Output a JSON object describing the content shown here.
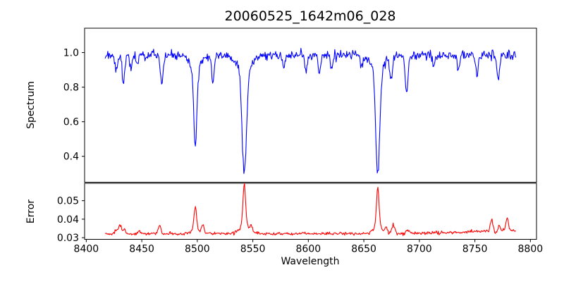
{
  "chart_data": {
    "type": "line",
    "title": "20060525_1642m06_028",
    "xlabel": "Wavelength",
    "legend": null,
    "grid": false,
    "x_data_range": [
      8417,
      8787
    ],
    "xlim": [
      8398.5,
      8805.5
    ],
    "xticks": [
      {
        "v": 8400,
        "label": "8400"
      },
      {
        "v": 8450,
        "label": "8450"
      },
      {
        "v": 8500,
        "label": "8500"
      },
      {
        "v": 8550,
        "label": "8550"
      },
      {
        "v": 8600,
        "label": "8600"
      },
      {
        "v": 8650,
        "label": "8650"
      },
      {
        "v": 8700,
        "label": "8700"
      },
      {
        "v": 8750,
        "label": "8750"
      },
      {
        "v": 8800,
        "label": "8800"
      }
    ],
    "n_points": 620,
    "seed": 20060525,
    "frame_color": "#000000",
    "panels": [
      {
        "name": "spectrum",
        "ylabel": "Spectrum",
        "color": "#0000ff",
        "ylim": [
          0.25,
          1.141
        ],
        "yticks": [
          {
            "v": 0.4,
            "label": "0.4"
          },
          {
            "v": 0.6,
            "label": "0.6"
          },
          {
            "v": 0.8,
            "label": "0.8"
          },
          {
            "v": 1.0,
            "label": "1.0"
          }
        ],
        "baseline": 0.985,
        "noise_sigma": 0.013,
        "absorption_lines": [
          {
            "center": 8427.0,
            "depth": 0.08,
            "sigma": 1.1
          },
          {
            "center": 8433.5,
            "depth": 0.17,
            "sigma": 1.1
          },
          {
            "center": 8440.0,
            "depth": 0.09,
            "sigma": 1.0
          },
          {
            "center": 8446.0,
            "depth": 0.06,
            "sigma": 1.0
          },
          {
            "center": 8468.0,
            "depth": 0.16,
            "sigma": 1.2
          },
          {
            "center": 8498.2,
            "depth": 0.44,
            "sigma": 1.5
          },
          {
            "center": 8498.2,
            "depth": 0.07,
            "sigma": 5.0
          },
          {
            "center": 8514.0,
            "depth": 0.16,
            "sigma": 1.1
          },
          {
            "center": 8542.3,
            "depth": 0.6,
            "sigma": 1.9
          },
          {
            "center": 8542.3,
            "depth": 0.1,
            "sigma": 6.0
          },
          {
            "center": 8578.0,
            "depth": 0.08,
            "sigma": 1.1
          },
          {
            "center": 8598.0,
            "depth": 0.09,
            "sigma": 1.1
          },
          {
            "center": 8610.0,
            "depth": 0.11,
            "sigma": 1.1
          },
          {
            "center": 8621.0,
            "depth": 0.08,
            "sigma": 1.0
          },
          {
            "center": 8648.0,
            "depth": 0.07,
            "sigma": 1.0
          },
          {
            "center": 8662.5,
            "depth": 0.6,
            "sigma": 1.8
          },
          {
            "center": 8662.5,
            "depth": 0.09,
            "sigma": 5.5
          },
          {
            "center": 8674.5,
            "depth": 0.14,
            "sigma": 1.1
          },
          {
            "center": 8688.5,
            "depth": 0.22,
            "sigma": 1.3
          },
          {
            "center": 8713.0,
            "depth": 0.06,
            "sigma": 1.0
          },
          {
            "center": 8735.0,
            "depth": 0.09,
            "sigma": 1.1
          },
          {
            "center": 8752.0,
            "depth": 0.11,
            "sigma": 1.2
          },
          {
            "center": 8771.0,
            "depth": 0.13,
            "sigma": 1.4
          }
        ]
      },
      {
        "name": "error",
        "ylabel": "Error",
        "color": "#ff0000",
        "ylim": [
          0.0291,
          0.0594
        ],
        "yticks": [
          {
            "v": 0.03,
            "label": "0.03"
          },
          {
            "v": 0.04,
            "label": "0.04"
          },
          {
            "v": 0.05,
            "label": "0.05"
          }
        ],
        "baseline": 0.0322,
        "noise_sigma": 0.00042,
        "right_rise": {
          "from": 8690,
          "to": 8787,
          "amount": 0.0016
        },
        "peaks": [
          {
            "center": 8427.0,
            "amp": 0.002,
            "sigma": 1.2
          },
          {
            "center": 8430.5,
            "amp": 0.0045,
            "sigma": 1.2
          },
          {
            "center": 8434.0,
            "amp": 0.002,
            "sigma": 1.0
          },
          {
            "center": 8448.0,
            "amp": 0.0012,
            "sigma": 1.2
          },
          {
            "center": 8466.0,
            "amp": 0.0045,
            "sigma": 1.2
          },
          {
            "center": 8498.2,
            "amp": 0.012,
            "sigma": 1.2
          },
          {
            "center": 8498.2,
            "amp": 0.002,
            "sigma": 4.0
          },
          {
            "center": 8505.0,
            "amp": 0.0045,
            "sigma": 1.1
          },
          {
            "center": 8542.3,
            "amp": 0.0228,
            "sigma": 1.2
          },
          {
            "center": 8542.3,
            "amp": 0.004,
            "sigma": 4.5
          },
          {
            "center": 8548.5,
            "amp": 0.0032,
            "sigma": 1.0
          },
          {
            "center": 8662.5,
            "amp": 0.021,
            "sigma": 1.2
          },
          {
            "center": 8662.5,
            "amp": 0.0035,
            "sigma": 4.5
          },
          {
            "center": 8670.0,
            "amp": 0.003,
            "sigma": 1.0
          },
          {
            "center": 8676.5,
            "amp": 0.0045,
            "sigma": 1.4
          },
          {
            "center": 8690.0,
            "amp": 0.0018,
            "sigma": 1.5
          },
          {
            "center": 8765.0,
            "amp": 0.0062,
            "sigma": 1.2
          },
          {
            "center": 8772.0,
            "amp": 0.0035,
            "sigma": 1.0
          },
          {
            "center": 8779.0,
            "amp": 0.0068,
            "sigma": 1.2
          }
        ]
      }
    ]
  }
}
